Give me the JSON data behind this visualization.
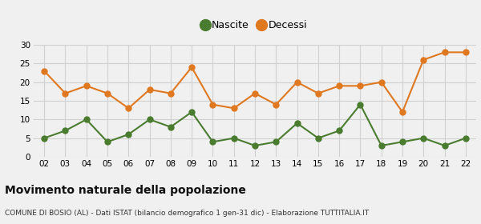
{
  "years": [
    "02",
    "03",
    "04",
    "05",
    "06",
    "07",
    "08",
    "09",
    "10",
    "11",
    "12",
    "13",
    "14",
    "15",
    "16",
    "17",
    "18",
    "19",
    "20",
    "21",
    "22"
  ],
  "nascite": [
    5,
    7,
    10,
    4,
    6,
    10,
    8,
    12,
    4,
    5,
    3,
    4,
    9,
    5,
    7,
    14,
    3,
    4,
    5,
    3,
    5
  ],
  "decessi": [
    23,
    17,
    19,
    17,
    13,
    18,
    17,
    24,
    14,
    13,
    17,
    14,
    20,
    17,
    19,
    19,
    20,
    12,
    26,
    28,
    28
  ],
  "nascite_color": "#4a7c2f",
  "decessi_color": "#e07820",
  "background_color": "#f0f0f0",
  "grid_color": "#d0d0d0",
  "title": "Movimento naturale della popolazione",
  "subtitle": "COMUNE DI BOSIO (AL) - Dati ISTAT (bilancio demografico 1 gen-31 dic) - Elaborazione TUTTITALIA.IT",
  "legend_nascite": "Nascite",
  "legend_decessi": "Decessi",
  "ylim": [
    0,
    30
  ],
  "yticks": [
    0,
    5,
    10,
    15,
    20,
    25,
    30
  ],
  "marker_size": 5,
  "line_width": 1.5,
  "tick_fontsize": 7.5,
  "title_fontsize": 10,
  "subtitle_fontsize": 6.5,
  "legend_fontsize": 9
}
